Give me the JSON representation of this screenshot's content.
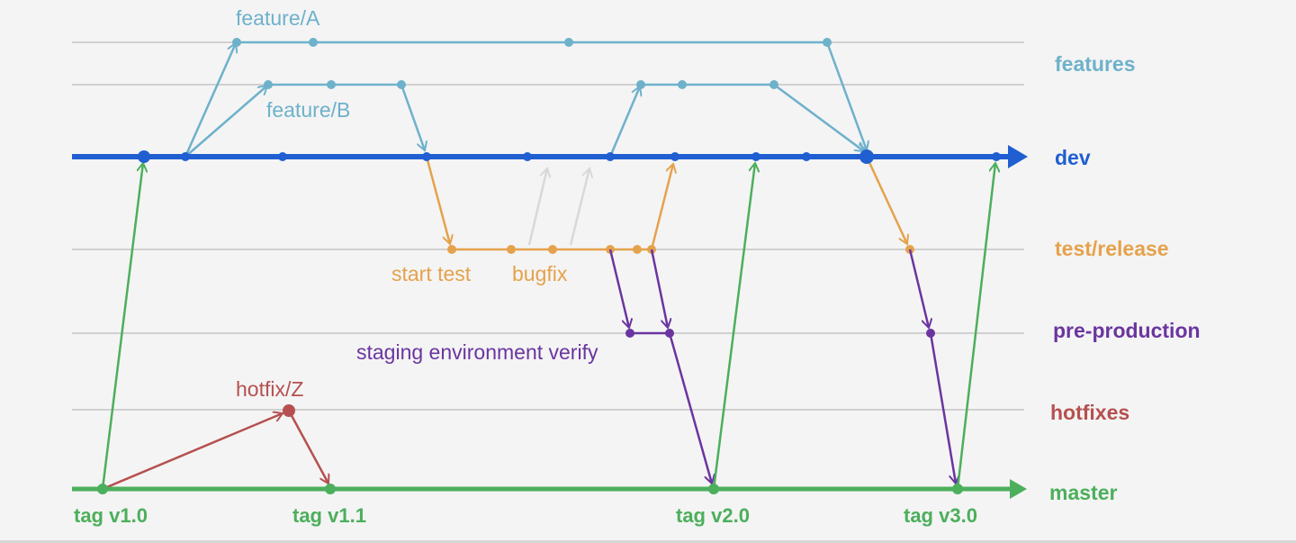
{
  "colors": {
    "background": "#f4f4f4",
    "lane_line": "#d0d0d0",
    "features": "#6eb1cb",
    "dev": "#1f5fd1",
    "test": "#e5a24c",
    "preprod": "#6a35a0",
    "hotfix": "#b65050",
    "master": "#4caf5c",
    "faint": "#d8d8d8"
  },
  "lanes": {
    "features": "features",
    "dev": "dev",
    "test_release": "test/release",
    "pre_production": "pre-production",
    "hotfixes": "hotfixes",
    "master": "master"
  },
  "notes": {
    "feature_a": "feature/A",
    "feature_b": "feature/B",
    "start_test": "start test",
    "bugfix": "bugfix",
    "staging_verify": "staging environment verify",
    "hotfix_z": "hotfix/Z"
  },
  "tags": [
    "tag v1.0",
    "tag v1.1",
    "tag v2.0",
    "tag v3.0"
  ]
}
